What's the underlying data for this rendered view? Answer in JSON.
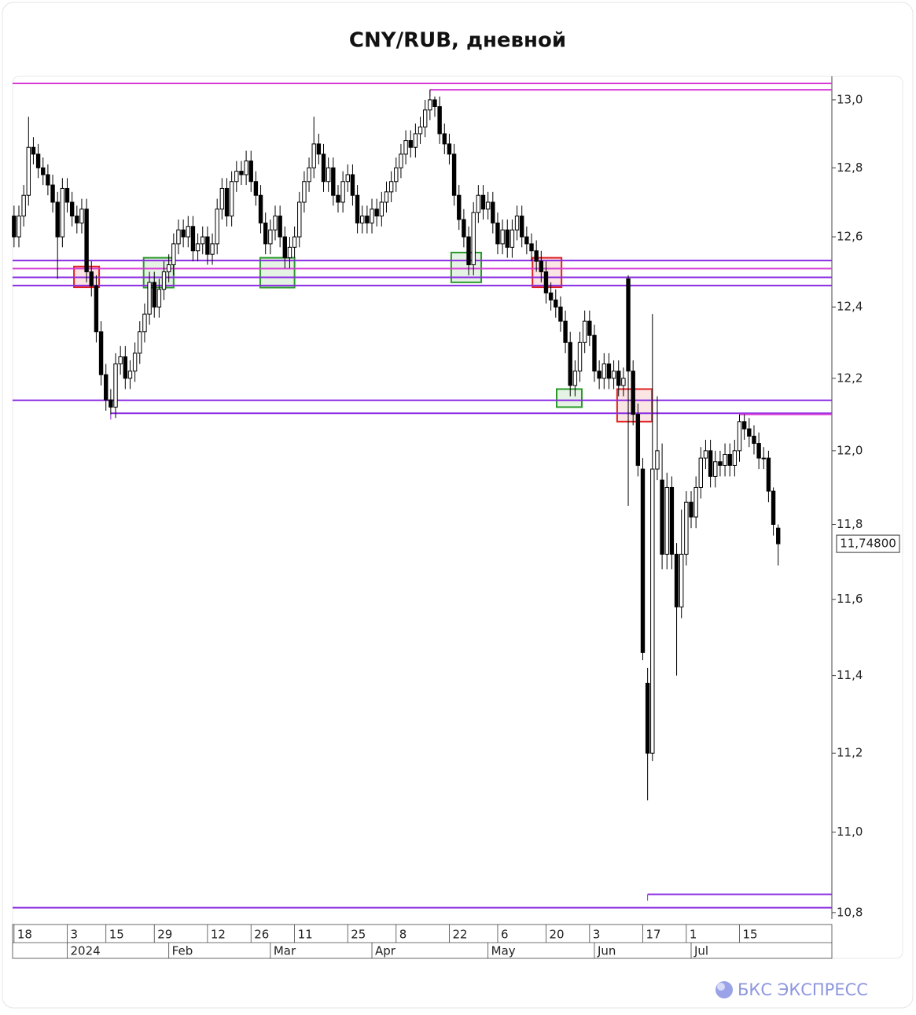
{
  "chart_data": {
    "type": "candlestick",
    "title": "CNY/RUB, дневной",
    "log_scale": true,
    "ylim": [
      10.79,
      13.07
    ],
    "yticks": [
      {
        "value": 13.0,
        "label": "13,0"
      },
      {
        "value": 12.8,
        "label": "12,8"
      },
      {
        "value": 12.6,
        "label": "12,6"
      },
      {
        "value": 12.4,
        "label": "12,4"
      },
      {
        "value": 12.2,
        "label": "12,2"
      },
      {
        "value": 12.0,
        "label": "12,0"
      },
      {
        "value": 11.8,
        "label": "11,8"
      },
      {
        "value": 11.6,
        "label": "11,6"
      },
      {
        "value": 11.4,
        "label": "11,4"
      },
      {
        "value": 11.2,
        "label": "11,2"
      },
      {
        "value": 11.0,
        "label": "11,0"
      },
      {
        "value": 10.8,
        "label": "10,8"
      }
    ],
    "xlim": [
      -0.3,
      169.1
    ],
    "xticks": [
      {
        "value": 0,
        "label": "18"
      },
      {
        "value": 11,
        "label": "3"
      },
      {
        "value": 19,
        "label": "15"
      },
      {
        "value": 29,
        "label": "29"
      },
      {
        "value": 40,
        "label": "12"
      },
      {
        "value": 49,
        "label": "26"
      },
      {
        "value": 58,
        "label": "11"
      },
      {
        "value": 69,
        "label": "25"
      },
      {
        "value": 79,
        "label": "8"
      },
      {
        "value": 90,
        "label": "22"
      },
      {
        "value": 100,
        "label": "6"
      },
      {
        "value": 110,
        "label": "20"
      },
      {
        "value": 119,
        "label": "3"
      },
      {
        "value": 130,
        "label": "17"
      },
      {
        "value": 139,
        "label": "1"
      },
      {
        "value": 150,
        "label": "15"
      }
    ],
    "month_ticks": [
      {
        "value": 11,
        "label": "2024"
      },
      {
        "value": 32,
        "label": "Feb"
      },
      {
        "value": 53,
        "label": "Mar"
      },
      {
        "value": 74,
        "label": "Apr"
      },
      {
        "value": 98,
        "label": "May"
      },
      {
        "value": 120,
        "label": "Jun"
      },
      {
        "value": 140,
        "label": "Jul"
      }
    ],
    "up_color": "#ffffff",
    "down_color": "#000000",
    "open": [
      12.66,
      12.6,
      12.66,
      12.72,
      12.86,
      12.84,
      12.8,
      12.78,
      12.75,
      12.7,
      12.6,
      12.74,
      12.7,
      12.66,
      12.64,
      12.68,
      12.5,
      12.46,
      12.33,
      12.21,
      12.14,
      12.12,
      12.24,
      12.26,
      12.2,
      12.22,
      12.27,
      12.33,
      12.38,
      12.47,
      12.4,
      12.45,
      12.5,
      12.52,
      12.58,
      12.62,
      12.6,
      12.63,
      12.56,
      12.58,
      12.6,
      12.55,
      12.58,
      12.68,
      12.74,
      12.66,
      12.76,
      12.79,
      12.78,
      12.82,
      12.76,
      12.72,
      12.64,
      12.58,
      12.62,
      12.66,
      12.6,
      12.54,
      12.57,
      12.6,
      12.7,
      12.76,
      12.8,
      12.87,
      12.84,
      12.76,
      12.8,
      12.72,
      12.7,
      12.76,
      12.78,
      12.72,
      12.64,
      12.66,
      12.64,
      12.68,
      12.66,
      12.7,
      12.73,
      12.76,
      12.8,
      12.84,
      12.88,
      12.86,
      12.9,
      12.92,
      12.97,
      13.0,
      12.98,
      12.9,
      12.87,
      12.84,
      12.72,
      12.65,
      12.6,
      12.52,
      12.67,
      12.72,
      12.68,
      12.7,
      12.64,
      12.58,
      12.62,
      12.57,
      12.62,
      12.66,
      12.6,
      12.58,
      12.56,
      12.53,
      12.5,
      12.44,
      12.42,
      12.4,
      12.36,
      12.3,
      12.18,
      12.22,
      12.3,
      12.36,
      12.32,
      12.22,
      12.2,
      12.24,
      12.2,
      12.22,
      12.18,
      12.48,
      12.22,
      12.1,
      11.95,
      11.38,
      11.2,
      11.95,
      11.92,
      11.72,
      11.9,
      11.72,
      11.58,
      11.72,
      11.86,
      11.82,
      11.9,
      11.98,
      12.0,
      11.93,
      11.97,
      11.96,
      11.99,
      11.96,
      12.0,
      12.08,
      12.06,
      12.04,
      12.02,
      11.98,
      11.98,
      11.89,
      11.79
    ],
    "high": [
      12.69,
      12.69,
      12.75,
      12.95,
      12.89,
      12.87,
      12.83,
      12.81,
      12.78,
      12.73,
      12.77,
      12.77,
      12.73,
      12.69,
      12.71,
      12.71,
      12.53,
      12.49,
      12.36,
      12.24,
      12.17,
      12.27,
      12.29,
      12.29,
      12.25,
      12.3,
      12.36,
      12.41,
      12.5,
      12.5,
      12.48,
      12.53,
      12.55,
      12.61,
      12.65,
      12.65,
      12.66,
      12.66,
      12.61,
      12.63,
      12.63,
      12.61,
      12.71,
      12.77,
      12.77,
      12.79,
      12.82,
      12.82,
      12.85,
      12.85,
      12.79,
      12.75,
      12.67,
      12.65,
      12.69,
      12.69,
      12.63,
      12.6,
      12.63,
      12.73,
      12.79,
      12.83,
      12.95,
      12.9,
      12.87,
      12.83,
      12.83,
      12.75,
      12.79,
      12.81,
      12.81,
      12.75,
      12.69,
      12.69,
      12.71,
      12.71,
      12.73,
      12.76,
      12.79,
      12.83,
      12.87,
      12.91,
      12.91,
      12.93,
      12.95,
      13.0,
      13.03,
      13.01,
      13.01,
      12.93,
      12.9,
      12.87,
      12.75,
      12.68,
      12.63,
      12.7,
      12.75,
      12.75,
      12.73,
      12.73,
      12.67,
      12.65,
      12.65,
      12.65,
      12.69,
      12.69,
      12.63,
      12.61,
      12.59,
      12.56,
      12.53,
      12.47,
      12.45,
      12.43,
      12.39,
      12.33,
      12.25,
      12.33,
      12.39,
      12.39,
      12.35,
      12.25,
      12.27,
      12.27,
      12.25,
      12.25,
      12.23,
      12.49,
      12.25,
      12.13,
      11.98,
      11.42,
      12.38,
      12.15,
      12.02,
      11.94,
      11.93,
      11.75,
      11.84,
      11.89,
      11.89,
      11.93,
      12.01,
      12.03,
      12.03,
      12.0,
      12.0,
      12.02,
      12.02,
      12.03,
      12.1,
      12.1,
      12.09,
      12.07,
      12.05,
      12.01,
      12.0,
      11.9,
      11.8
    ],
    "low": [
      12.57,
      12.57,
      12.63,
      12.69,
      12.81,
      12.77,
      12.75,
      12.72,
      12.67,
      12.48,
      12.57,
      12.67,
      12.63,
      12.61,
      12.61,
      12.47,
      12.43,
      12.3,
      12.18,
      12.11,
      12.1,
      12.09,
      12.21,
      12.17,
      12.17,
      12.19,
      12.24,
      12.3,
      12.35,
      12.37,
      12.37,
      12.42,
      12.47,
      12.49,
      12.55,
      12.57,
      12.57,
      12.53,
      12.53,
      12.55,
      12.52,
      12.52,
      12.55,
      12.65,
      12.63,
      12.63,
      12.73,
      12.75,
      12.75,
      12.73,
      12.69,
      12.61,
      12.55,
      12.55,
      12.59,
      12.57,
      12.51,
      12.51,
      12.54,
      12.57,
      12.67,
      12.73,
      12.77,
      12.81,
      12.73,
      12.73,
      12.69,
      12.67,
      12.67,
      12.73,
      12.69,
      12.61,
      12.61,
      12.61,
      12.61,
      12.63,
      12.63,
      12.67,
      12.7,
      12.73,
      12.77,
      12.81,
      12.83,
      12.83,
      12.87,
      12.89,
      12.94,
      12.95,
      12.87,
      12.84,
      12.81,
      12.69,
      12.62,
      12.57,
      12.49,
      12.49,
      12.64,
      12.65,
      12.65,
      12.61,
      12.55,
      12.55,
      12.54,
      12.54,
      12.59,
      12.57,
      12.55,
      12.53,
      12.5,
      12.47,
      12.41,
      12.39,
      12.37,
      12.33,
      12.27,
      12.15,
      12.15,
      12.19,
      12.27,
      12.29,
      12.19,
      12.17,
      12.17,
      12.17,
      12.17,
      12.15,
      12.15,
      11.85,
      12.07,
      11.93,
      11.44,
      11.08,
      11.18,
      11.92,
      11.68,
      11.68,
      11.68,
      11.4,
      11.55,
      11.69,
      11.79,
      11.79,
      11.87,
      11.95,
      11.9,
      11.9,
      11.93,
      11.93,
      11.93,
      11.93,
      11.97,
      12.03,
      12.01,
      11.99,
      11.95,
      11.95,
      11.86,
      11.77,
      11.69
    ],
    "close": [
      12.6,
      12.66,
      12.72,
      12.86,
      12.84,
      12.8,
      12.78,
      12.75,
      12.7,
      12.6,
      12.74,
      12.7,
      12.66,
      12.64,
      12.68,
      12.5,
      12.46,
      12.33,
      12.21,
      12.14,
      12.12,
      12.24,
      12.26,
      12.2,
      12.22,
      12.27,
      12.33,
      12.38,
      12.47,
      12.4,
      12.45,
      12.5,
      12.52,
      12.58,
      12.62,
      12.6,
      12.63,
      12.56,
      12.58,
      12.6,
      12.55,
      12.58,
      12.68,
      12.74,
      12.66,
      12.76,
      12.79,
      12.78,
      12.82,
      12.76,
      12.72,
      12.64,
      12.58,
      12.62,
      12.66,
      12.6,
      12.54,
      12.57,
      12.6,
      12.7,
      12.76,
      12.8,
      12.87,
      12.84,
      12.76,
      12.8,
      12.72,
      12.7,
      12.76,
      12.78,
      12.72,
      12.64,
      12.66,
      12.64,
      12.68,
      12.66,
      12.7,
      12.73,
      12.76,
      12.8,
      12.84,
      12.88,
      12.86,
      12.9,
      12.92,
      12.97,
      13.0,
      12.98,
      12.9,
      12.87,
      12.84,
      12.72,
      12.65,
      12.6,
      12.52,
      12.67,
      12.72,
      12.68,
      12.7,
      12.64,
      12.58,
      12.62,
      12.57,
      12.62,
      12.66,
      12.6,
      12.58,
      12.56,
      12.53,
      12.5,
      12.44,
      12.42,
      12.4,
      12.36,
      12.3,
      12.18,
      12.22,
      12.3,
      12.36,
      12.32,
      12.22,
      12.2,
      12.24,
      12.2,
      12.22,
      12.18,
      12.2,
      12.22,
      12.1,
      11.96,
      11.46,
      11.2,
      11.95,
      12.0,
      11.72,
      11.9,
      11.72,
      11.58,
      11.72,
      11.86,
      11.82,
      11.9,
      11.98,
      12.0,
      11.93,
      11.97,
      11.96,
      11.99,
      11.96,
      12.0,
      12.08,
      12.06,
      12.04,
      12.02,
      11.98,
      11.98,
      11.89,
      11.8,
      11.748
    ],
    "last_value_label": "11,74800",
    "levels": [
      {
        "value": 13.049,
        "start": -0.3,
        "color": "#d63ad6"
      },
      {
        "value": 13.03,
        "start": 86,
        "color": "#d63ad6"
      },
      {
        "value": 12.532,
        "start": -0.3,
        "color": "#8a2be2"
      },
      {
        "value": 12.509,
        "start": -0.3,
        "color": "#d63ad6"
      },
      {
        "value": 12.484,
        "start": -0.3,
        "color": "#8a2be2"
      },
      {
        "value": 12.461,
        "start": -0.3,
        "color": "#8a2be2"
      },
      {
        "value": 12.139,
        "start": -0.3,
        "color": "#8a2be2"
      },
      {
        "value": 12.103,
        "start": 20,
        "color": "#8a2be2"
      },
      {
        "value": 12.1,
        "start": 150,
        "color": "#d63ad6"
      },
      {
        "value": 10.845,
        "start": 131,
        "color": "#8a2be2"
      },
      {
        "value": 10.812,
        "start": -0.3,
        "color": "#8a2be2"
      }
    ],
    "zones": [
      {
        "start": 12.4,
        "end": 17.6,
        "low": 12.456,
        "high": 12.515,
        "color": "#e02020"
      },
      {
        "start": 26.8,
        "end": 33.0,
        "low": 12.455,
        "high": 12.54,
        "color": "#2a9a2a"
      },
      {
        "start": 50.9,
        "end": 58.0,
        "low": 12.455,
        "high": 12.54,
        "color": "#2a9a2a"
      },
      {
        "start": 90.4,
        "end": 96.6,
        "low": 12.47,
        "high": 12.555,
        "color": "#2a9a2a"
      },
      {
        "start": 107.2,
        "end": 113.2,
        "low": 12.456,
        "high": 12.54,
        "color": "#e02020"
      },
      {
        "start": 112.2,
        "end": 117.4,
        "low": 12.12,
        "high": 12.17,
        "color": "#2a9a2a"
      },
      {
        "start": 124.7,
        "end": 131.9,
        "low": 12.08,
        "high": 12.17,
        "color": "#e02020"
      }
    ]
  },
  "brand": "БКС ЭКСПРЕСС"
}
